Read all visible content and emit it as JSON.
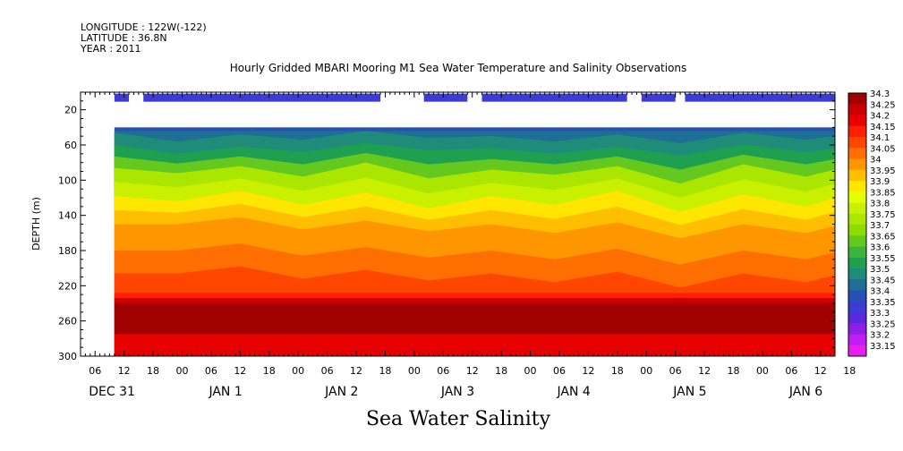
{
  "header": {
    "longitude": "LONGITUDE : 122W(-122)",
    "latitude": "LATITUDE : 36.8N",
    "year": "YEAR : 2011",
    "title": "Hourly Gridded MBARI Mooring M1 Sea Water Temperature and Salinity Observations"
  },
  "caption": "Sea Water Salinity",
  "chart_data": {
    "type": "heatmap",
    "title": "Hourly Gridded MBARI Mooring M1 Sea Water Temperature and Salinity Observations",
    "xlabel": "",
    "ylabel": "DEPTH (m)",
    "variable": "Sea Water Salinity",
    "x_hours_range": [
      0,
      156
    ],
    "x_start_label": "DEC 31 03:00",
    "y_range": [
      300,
      0
    ],
    "y_ticks": [
      20,
      60,
      100,
      140,
      180,
      220,
      260,
      300
    ],
    "hour_tick_labels": [
      "06",
      "12",
      "18",
      "00",
      "06",
      "12",
      "18",
      "00",
      "06",
      "12",
      "18",
      "00",
      "06",
      "12",
      "18",
      "00",
      "06",
      "12",
      "18",
      "00",
      "06",
      "12",
      "18",
      "00",
      "06",
      "12",
      "18"
    ],
    "day_labels": [
      "DEC 31",
      "JAN  1",
      "JAN  2",
      "JAN  3",
      "JAN  4",
      "JAN  5",
      "JAN  6"
    ],
    "colorbar_levels": [
      "34.3",
      "34.25",
      "34.2",
      "34.15",
      "34.1",
      "34.05",
      "34",
      "33.95",
      "33.9",
      "33.85",
      "33.8",
      "33.75",
      "33.7",
      "33.65",
      "33.6",
      "33.55",
      "33.5",
      "33.45",
      "33.4",
      "33.35",
      "33.3",
      "33.25",
      "33.2",
      "33.15"
    ],
    "colorbar_colors": [
      "#a00000",
      "#c80000",
      "#e60000",
      "#ff1e00",
      "#ff4600",
      "#ff6e00",
      "#ff9600",
      "#ffbe00",
      "#ffe600",
      "#e6ff00",
      "#c8f000",
      "#aae600",
      "#8cdc00",
      "#64c81e",
      "#3cb43c",
      "#1ea050",
      "#1e8c78",
      "#1e6e96",
      "#2850b4",
      "#3c3cd2",
      "#5a28dc",
      "#8c1ee6",
      "#be1ef0",
      "#e61ef0"
    ],
    "surface_level_presence": [
      {
        "from_hour": 7,
        "to_hour": 10
      },
      {
        "from_hour": 13,
        "to_hour": 62
      },
      {
        "from_hour": 71,
        "to_hour": 80
      },
      {
        "from_hour": 83,
        "to_hour": 113
      },
      {
        "from_hour": 116,
        "to_hour": 123
      },
      {
        "from_hour": 125,
        "to_hour": 156
      }
    ],
    "data_top_depth": 20,
    "profile_top_depth": 40,
    "upper_boundaries_depth": {
      "hour": [
        7,
        20,
        33,
        46,
        59,
        72,
        85,
        98,
        111,
        124,
        137,
        150,
        156
      ],
      "salinity_33_5": [
        60,
        70,
        62,
        68,
        58,
        66,
        64,
        70,
        62,
        72,
        60,
        68,
        64
      ],
      "salinity_33_7": [
        86,
        92,
        84,
        96,
        80,
        98,
        88,
        94,
        84,
        104,
        82,
        96,
        88
      ],
      "salinity_33_9": [
        118,
        124,
        112,
        128,
        114,
        132,
        118,
        128,
        112,
        136,
        116,
        130,
        120
      ],
      "salinity_34_0": [
        150,
        150,
        142,
        156,
        146,
        158,
        150,
        160,
        148,
        166,
        150,
        160,
        152
      ]
    },
    "core_max_depth_range": [
      240,
      275
    ],
    "core_max_value": "34.3"
  }
}
